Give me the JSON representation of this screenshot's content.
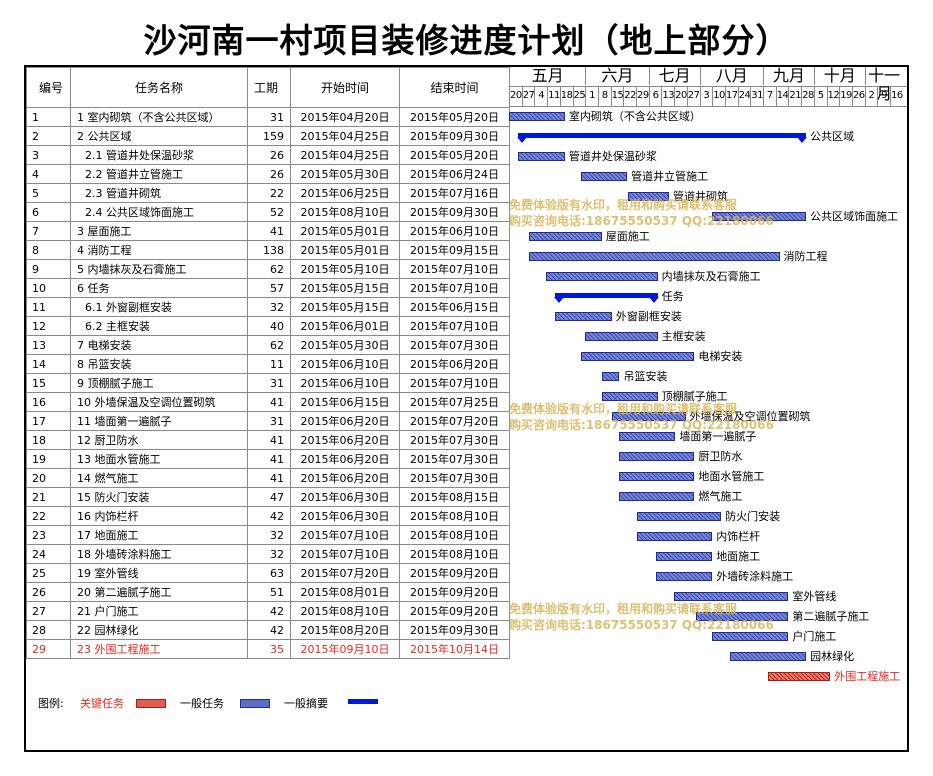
{
  "title": "沙河南一村项目装修进度计划（地上部分）",
  "columns": {
    "id": "编号",
    "name": "任务名称",
    "duration": "工期",
    "start": "开始时间",
    "end": "结束时间"
  },
  "timeline": {
    "months": [
      "五月",
      "六月",
      "七月",
      "八月",
      "九月",
      "十月",
      "十一月"
    ],
    "weeks": [
      "20",
      "27",
      "4",
      "11",
      "18",
      "25",
      "1",
      "8",
      "15",
      "22",
      "29",
      "6",
      "13",
      "20",
      "27",
      "3",
      "10",
      "17",
      "24",
      "31",
      "7",
      "14",
      "21",
      "28",
      "5",
      "12",
      "19",
      "26",
      "2",
      "9",
      "16"
    ]
  },
  "tasks": [
    {
      "id": "1",
      "name": "1 室内砌筑（不含公共区域）",
      "duration": "31",
      "start": "2015年04月20日",
      "end": "2015年05月20日",
      "bar_label": "室内砌筑（不含公共区域）",
      "type": "normal",
      "start_week": 0.0,
      "end_week": 4.4
    },
    {
      "id": "2",
      "name": "2 公共区域",
      "duration": "159",
      "start": "2015年04月25日",
      "end": "2015年09月30日",
      "bar_label": "公共区域",
      "type": "summary",
      "start_week": 0.7,
      "end_week": 23.4
    },
    {
      "id": "3",
      "name": "2.1 管道井处保温砂浆",
      "duration": "26",
      "start": "2015年04月25日",
      "end": "2015年05月20日",
      "bar_label": "管道井处保温砂浆",
      "type": "normal",
      "start_week": 0.7,
      "end_week": 4.4
    },
    {
      "id": "4",
      "name": "2.2 管道井立管施工",
      "duration": "26",
      "start": "2015年05月30日",
      "end": "2015年06月24日",
      "bar_label": "管道井立管施工",
      "type": "normal",
      "start_week": 5.7,
      "end_week": 9.3
    },
    {
      "id": "5",
      "name": "2.3 管道井砌筑",
      "duration": "22",
      "start": "2015年06月25日",
      "end": "2015年07月16日",
      "bar_label": "管道井砌筑",
      "type": "normal",
      "start_week": 9.4,
      "end_week": 12.6
    },
    {
      "id": "6",
      "name": "2.4 公共区域饰面施工",
      "duration": "52",
      "start": "2015年08月10日",
      "end": "2015年09月30日",
      "bar_label": "公共区域饰面施工",
      "type": "normal",
      "start_week": 16.0,
      "end_week": 23.4
    },
    {
      "id": "7",
      "name": "3 屋面施工",
      "duration": "41",
      "start": "2015年05月01日",
      "end": "2015年06月10日",
      "bar_label": "屋面施工",
      "type": "normal",
      "start_week": 1.6,
      "end_week": 7.3
    },
    {
      "id": "8",
      "name": "4 消防工程",
      "duration": "138",
      "start": "2015年05月01日",
      "end": "2015年09月15日",
      "bar_label": "消防工程",
      "type": "normal",
      "start_week": 1.6,
      "end_week": 21.3
    },
    {
      "id": "9",
      "name": "5 内墙抹灰及石膏施工",
      "duration": "62",
      "start": "2015年05月10日",
      "end": "2015年07月10日",
      "bar_label": "内墙抹灰及石膏施工",
      "type": "normal",
      "start_week": 2.9,
      "end_week": 11.7
    },
    {
      "id": "10",
      "name": "6 任务",
      "duration": "57",
      "start": "2015年05月15日",
      "end": "2015年07月10日",
      "bar_label": "任务",
      "type": "summary",
      "start_week": 3.6,
      "end_week": 11.7
    },
    {
      "id": "11",
      "name": "6.1 外窗副框安装",
      "duration": "32",
      "start": "2015年05月15日",
      "end": "2015年06月15日",
      "bar_label": "外窗副框安装",
      "type": "normal",
      "start_week": 3.6,
      "end_week": 8.1
    },
    {
      "id": "12",
      "name": "6.2 主框安装",
      "duration": "40",
      "start": "2015年06月01日",
      "end": "2015年07月10日",
      "bar_label": "主框安装",
      "type": "normal",
      "start_week": 6.0,
      "end_week": 11.7
    },
    {
      "id": "13",
      "name": "7 电梯安装",
      "duration": "62",
      "start": "2015年05月30日",
      "end": "2015年07月30日",
      "bar_label": "电梯安装",
      "type": "normal",
      "start_week": 5.7,
      "end_week": 14.6
    },
    {
      "id": "14",
      "name": "8 吊篮安装",
      "duration": "11",
      "start": "2015年06月10日",
      "end": "2015年06月20日",
      "bar_label": "吊篮安装",
      "type": "normal",
      "start_week": 7.3,
      "end_week": 8.7
    },
    {
      "id": "15",
      "name": "9 顶棚腻子施工",
      "duration": "31",
      "start": "2015年06月10日",
      "end": "2015年07月10日",
      "bar_label": "顶棚腻子施工",
      "type": "normal",
      "start_week": 7.3,
      "end_week": 11.7
    },
    {
      "id": "16",
      "name": "10 外墙保温及空调位置砌筑",
      "duration": "41",
      "start": "2015年06月15日",
      "end": "2015年07月25日",
      "bar_label": "外墙保温及空调位置砌筑",
      "type": "normal",
      "start_week": 8.1,
      "end_week": 13.9
    },
    {
      "id": "17",
      "name": "11 墙面第一遍腻子",
      "duration": "31",
      "start": "2015年06月20日",
      "end": "2015年07月20日",
      "bar_label": "墙面第一遍腻子",
      "type": "normal",
      "start_week": 8.7,
      "end_week": 13.1
    },
    {
      "id": "18",
      "name": "12 厨卫防水",
      "duration": "41",
      "start": "2015年06月20日",
      "end": "2015年07月30日",
      "bar_label": "厨卫防水",
      "type": "normal",
      "start_week": 8.7,
      "end_week": 14.6
    },
    {
      "id": "19",
      "name": "13 地面水管施工",
      "duration": "41",
      "start": "2015年06月20日",
      "end": "2015年07月30日",
      "bar_label": "地面水管施工",
      "type": "normal",
      "start_week": 8.7,
      "end_week": 14.6
    },
    {
      "id": "20",
      "name": "14 燃气施工",
      "duration": "41",
      "start": "2015年06月20日",
      "end": "2015年07月30日",
      "bar_label": "燃气施工",
      "type": "normal",
      "start_week": 8.7,
      "end_week": 14.6
    },
    {
      "id": "21",
      "name": "15 防火门安装",
      "duration": "47",
      "start": "2015年06月30日",
      "end": "2015年08月15日",
      "bar_label": "防火门安装",
      "type": "normal",
      "start_week": 10.1,
      "end_week": 16.7
    },
    {
      "id": "22",
      "name": "16 内饰栏杆",
      "duration": "42",
      "start": "2015年06月30日",
      "end": "2015年08月10日",
      "bar_label": "内饰栏杆",
      "type": "normal",
      "start_week": 10.1,
      "end_week": 16.0
    },
    {
      "id": "23",
      "name": "17 地面施工",
      "duration": "32",
      "start": "2015年07月10日",
      "end": "2015年08月10日",
      "bar_label": "地面施工",
      "type": "normal",
      "start_week": 11.6,
      "end_week": 16.0
    },
    {
      "id": "24",
      "name": "18 外墙砖涂料施工",
      "duration": "32",
      "start": "2015年07月10日",
      "end": "2015年08月10日",
      "bar_label": "外墙砖涂料施工",
      "type": "normal",
      "start_week": 11.6,
      "end_week": 16.0
    },
    {
      "id": "25",
      "name": "19 室外管线",
      "duration": "63",
      "start": "2015年07月20日",
      "end": "2015年09月20日",
      "bar_label": "室外管线",
      "type": "normal",
      "start_week": 13.0,
      "end_week": 22.0
    },
    {
      "id": "26",
      "name": "20 第二遍腻子施工",
      "duration": "51",
      "start": "2015年08月01日",
      "end": "2015年09月20日",
      "bar_label": "第二遍腻子施工",
      "type": "normal",
      "start_week": 14.7,
      "end_week": 22.0
    },
    {
      "id": "27",
      "name": "21 户门施工",
      "duration": "42",
      "start": "2015年08月10日",
      "end": "2015年09月20日",
      "bar_label": "户门施工",
      "type": "normal",
      "start_week": 16.0,
      "end_week": 22.0
    },
    {
      "id": "28",
      "name": "22 园林绿化",
      "duration": "42",
      "start": "2015年08月20日",
      "end": "2015年09月30日",
      "bar_label": "园林绿化",
      "type": "normal",
      "start_week": 17.4,
      "end_week": 23.4
    },
    {
      "id": "29",
      "name": "23 外围工程施工",
      "duration": "35",
      "start": "2015年09月10日",
      "end": "2015年10月14日",
      "bar_label": "外围工程施工",
      "type": "critical",
      "start_week": 20.4,
      "end_week": 25.3
    }
  ],
  "legend": {
    "title": "图例:",
    "critical": "关键任务",
    "normal": "一般任务",
    "summary": "一般摘要"
  },
  "watermark": {
    "line1": "免费体验版有水印，租用和购买请联系客服",
    "line2": "购买咨询电话:18675550537 QQ:22180066"
  },
  "colors": {
    "task_bar": "#5e6ec7",
    "summary_bar": "#0018d8",
    "critical_bar": "#e45b4f",
    "critical_text": "#e4281f",
    "watermark": "#d6b65c"
  }
}
